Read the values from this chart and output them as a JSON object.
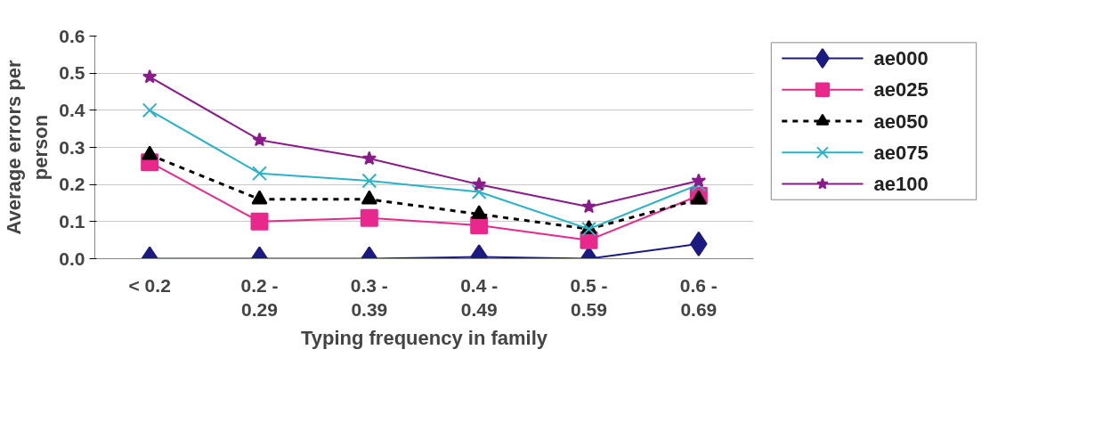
{
  "chart_data": {
    "type": "line",
    "xlabel": "Typing frequency in family",
    "ylabel": "Average errors per person",
    "categories": [
      "< 0.2",
      "0.2 - 0.29",
      "0.3 - 0.39",
      "0.4 - 0.49",
      "0.5 - 0.59",
      "0.6 - 0.69"
    ],
    "series": [
      {
        "name": "ae000",
        "color": "#1a1a80",
        "marker": "diamond",
        "line_style": "solid",
        "values": [
          0,
          0,
          0,
          0.005,
          0,
          0.04
        ]
      },
      {
        "name": "ae025",
        "color": "#e8288a",
        "marker": "square",
        "line_style": "solid",
        "values": [
          0.26,
          0.1,
          0.11,
          0.09,
          0.05,
          0.17
        ]
      },
      {
        "name": "ae050",
        "color": "#000000",
        "marker": "triangle",
        "line_style": "dashed",
        "values": [
          0.28,
          0.16,
          0.16,
          0.12,
          0.08,
          0.16
        ]
      },
      {
        "name": "ae075",
        "color": "#29b3c8",
        "marker": "cross",
        "line_style": "solid",
        "values": [
          0.4,
          0.23,
          0.21,
          0.18,
          0.08,
          0.2
        ]
      },
      {
        "name": "ae100",
        "color": "#8b1a8b",
        "marker": "star",
        "line_style": "solid",
        "values": [
          0.49,
          0.32,
          0.27,
          0.2,
          0.14,
          0.21
        ]
      }
    ],
    "ylim": [
      0,
      0.6
    ],
    "yticks": [
      {
        "value": 0,
        "label": "0.0"
      },
      0.1,
      0.2,
      0.3,
      0.4,
      0.5,
      0.6
    ],
    "grid": "y",
    "legend": "right"
  }
}
